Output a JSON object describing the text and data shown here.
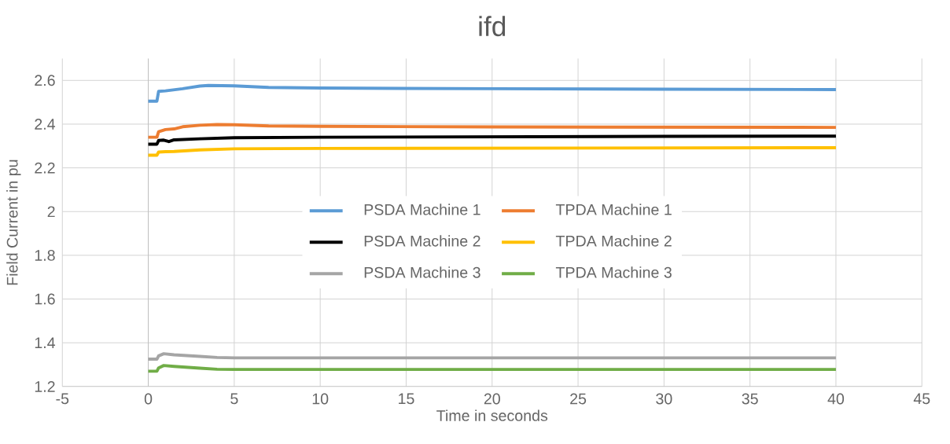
{
  "chart_data": {
    "type": "line",
    "title": "ifd",
    "xlabel": "Time in seconds",
    "ylabel": "Field Current in pu",
    "xlim": [
      -5,
      45
    ],
    "xticks": [
      -5,
      0,
      5,
      10,
      15,
      20,
      25,
      30,
      35,
      40,
      45
    ],
    "ylim": [
      1.2,
      2.7
    ],
    "yticks": [
      1.2,
      1.4,
      1.6,
      1.8,
      2,
      2.2,
      2.4,
      2.6
    ],
    "grid": true,
    "legend": "center",
    "marker": "none",
    "line_style": "solid",
    "series": [
      {
        "name": "PSDA Machine 1",
        "color": "#5b9bd5",
        "x": [
          0,
          0.5,
          0.6,
          1,
          2,
          3,
          3.5,
          5,
          7,
          10,
          20,
          30,
          40
        ],
        "values": [
          2.505,
          2.505,
          2.55,
          2.552,
          2.562,
          2.574,
          2.577,
          2.575,
          2.568,
          2.565,
          2.562,
          2.56,
          2.558
        ]
      },
      {
        "name": "TPDA Machine 1",
        "color": "#ed7d31",
        "x": [
          0,
          0.5,
          0.6,
          1,
          1.5,
          2,
          3,
          4,
          5,
          7,
          10,
          20,
          30,
          40
        ],
        "values": [
          2.34,
          2.34,
          2.365,
          2.375,
          2.378,
          2.388,
          2.395,
          2.398,
          2.397,
          2.392,
          2.39,
          2.387,
          2.386,
          2.385
        ]
      },
      {
        "name": "PSDA Machine 2",
        "color": "#000000",
        "x": [
          0,
          0.5,
          0.6,
          0.9,
          1.2,
          1.5,
          3,
          5,
          10,
          20,
          30,
          40
        ],
        "values": [
          2.308,
          2.308,
          2.325,
          2.327,
          2.32,
          2.328,
          2.333,
          2.338,
          2.34,
          2.342,
          2.344,
          2.345
        ]
      },
      {
        "name": "TPDA Machine 2",
        "color": "#ffc000",
        "x": [
          0,
          0.5,
          0.6,
          1,
          1.5,
          3,
          5,
          10,
          20,
          30,
          40
        ],
        "values": [
          2.258,
          2.258,
          2.272,
          2.274,
          2.275,
          2.282,
          2.287,
          2.289,
          2.29,
          2.291,
          2.292
        ]
      },
      {
        "name": "PSDA Machine 3",
        "color": "#a5a5a5",
        "x": [
          0,
          0.5,
          0.6,
          0.9,
          1.5,
          3,
          4,
          5,
          10,
          20,
          40
        ],
        "values": [
          1.325,
          1.325,
          1.34,
          1.35,
          1.345,
          1.338,
          1.333,
          1.331,
          1.331,
          1.331,
          1.331
        ]
      },
      {
        "name": "TPDA Machine 3",
        "color": "#70ad47",
        "x": [
          0,
          0.5,
          0.6,
          0.9,
          1.5,
          3,
          4,
          5,
          10,
          20,
          40
        ],
        "values": [
          1.27,
          1.27,
          1.285,
          1.296,
          1.292,
          1.284,
          1.279,
          1.278,
          1.278,
          1.278,
          1.278
        ]
      }
    ]
  }
}
